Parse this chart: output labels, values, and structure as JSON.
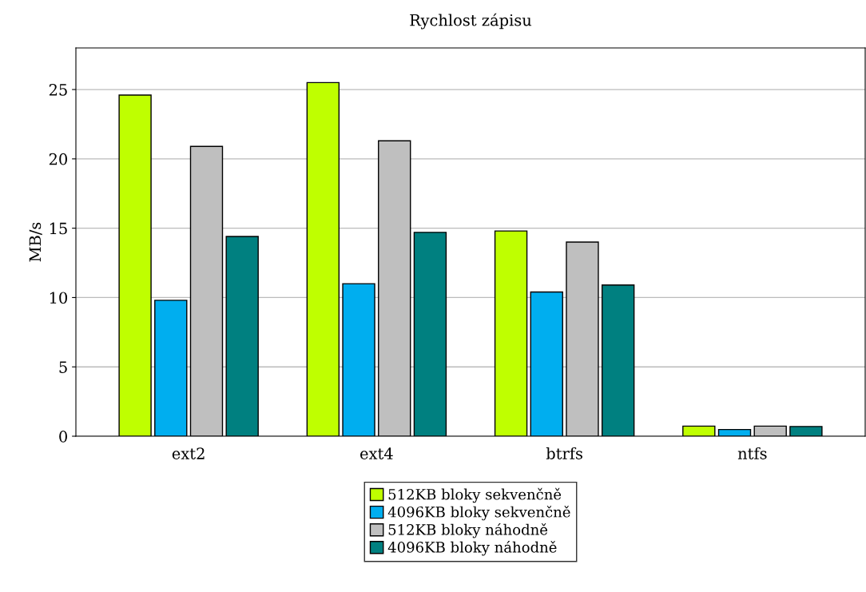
{
  "chart_data": {
    "type": "bar",
    "title": "Rychlost zápisu",
    "ylabel": "MB/s",
    "categories": [
      "ext2",
      "ext4",
      "btrfs",
      "ntfs"
    ],
    "series": [
      {
        "name": "512KB bloky sekvenčně",
        "color": "#bfff00",
        "values": [
          24.6,
          25.5,
          14.8,
          0.73
        ]
      },
      {
        "name": "4096KB bloky sekvenčně",
        "color": "#00aeef",
        "values": [
          9.8,
          11.0,
          10.4,
          0.48
        ]
      },
      {
        "name": "512KB bloky náhodně",
        "color": "#bfbfbf",
        "values": [
          20.9,
          21.3,
          14.0,
          0.73
        ]
      },
      {
        "name": "4096KB bloky náhodně",
        "color": "#008080",
        "values": [
          14.4,
          14.7,
          10.9,
          0.7
        ]
      }
    ],
    "ylim": [
      0,
      28
    ],
    "yticks": [
      0,
      5,
      10,
      15,
      20,
      25
    ],
    "grid": "y",
    "legend": "bottom"
  }
}
